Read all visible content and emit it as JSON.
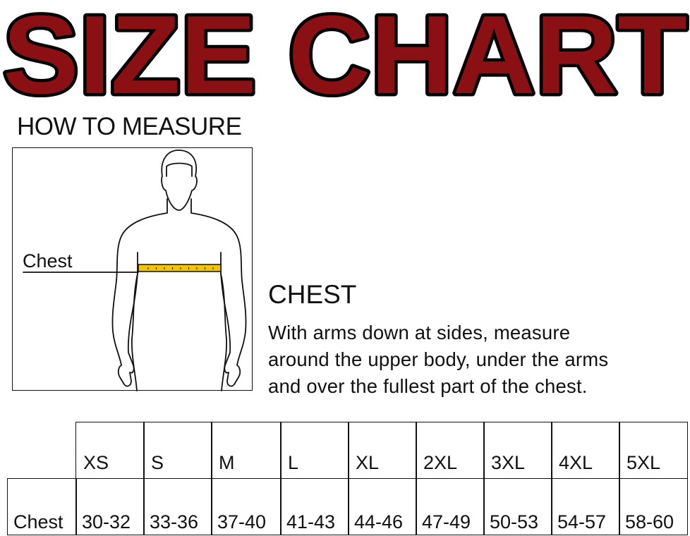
{
  "title": "SIZE CHART",
  "title_color": "#8B1014",
  "how_to_measure": "HOW TO MEASURE",
  "figure": {
    "label": "Chest",
    "tape_color": "#F2C500"
  },
  "chest": {
    "heading": "CHEST",
    "lines": [
      "With arms down at sides, measure",
      "around the upper body, under the arms",
      "and over the fullest part of the chest."
    ]
  },
  "table": {
    "headers": [
      "XS",
      "S",
      "M",
      "L",
      "XL",
      "2XL",
      "3XL",
      "4XL",
      "5XL"
    ],
    "rows": [
      {
        "label": "Chest",
        "values": [
          "30-32",
          "33-36",
          "37-40",
          "41-43",
          "44-46",
          "47-49",
          "50-53",
          "54-57",
          "58-60"
        ]
      }
    ]
  }
}
